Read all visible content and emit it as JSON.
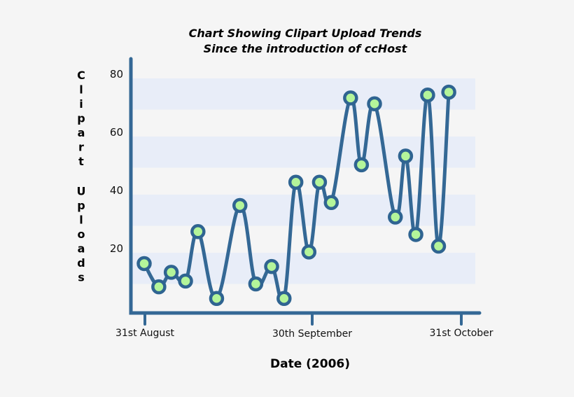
{
  "colors": {
    "background": "#f5f5f5",
    "band": "#e8edf8",
    "axis": "#346895",
    "line": "#346895",
    "marker_fill": "#b4f59a",
    "marker_stroke": "#2f6491"
  },
  "chart_data": {
    "type": "line",
    "title": "Chart Showing Clipart Upload Trends",
    "subtitle": "Since the introduction of ccHost",
    "xlabel": "Date (2006)",
    "ylabel": "Clipart Uploads",
    "x_ticks": [
      "31st August",
      "30th September",
      "31st October"
    ],
    "y_ticks": [
      20,
      40,
      60,
      80
    ],
    "ylim": [
      0,
      88
    ],
    "grid": "alternating horizontal bands",
    "legend": null,
    "series": [
      {
        "name": "Clipart Uploads",
        "x_positions": [
          0,
          0.047,
          0.087,
          0.133,
          0.173,
          0.233,
          0.308,
          0.359,
          0.41,
          0.45,
          0.488,
          0.53,
          0.564,
          0.602,
          0.664,
          0.699,
          0.741,
          0.808,
          0.841,
          0.874,
          0.912,
          0.947,
          0.98
        ],
        "values": [
          17,
          9,
          14,
          11,
          28,
          5,
          37,
          10,
          16,
          5,
          45,
          21,
          45,
          38,
          74,
          51,
          72,
          33,
          54,
          27,
          75,
          23,
          76
        ]
      }
    ]
  }
}
